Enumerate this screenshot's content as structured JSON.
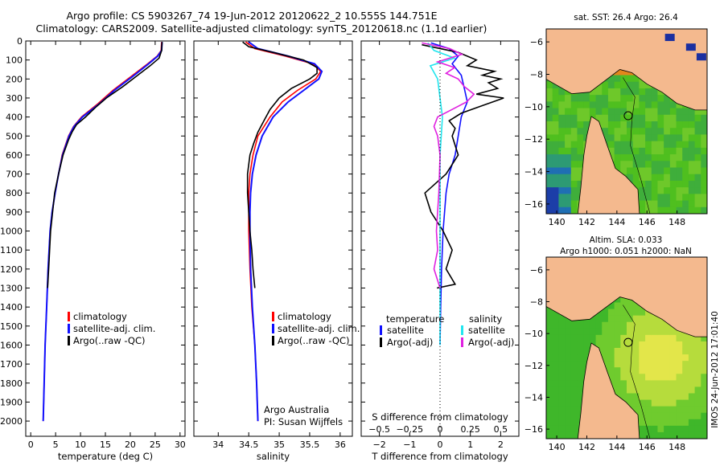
{
  "title": {
    "line1": "Argo profile: CS 5903267_74 19-Jun-2012 20120622_2 10.555S 144.751E",
    "line2": "Climatology: CARS2009. Satellite-adjusted climatology: synTS_20120618.nc (1.1d earlier)"
  },
  "colors": {
    "climatology": "#ff0000",
    "satellite": "#1010ff",
    "argo": "#000000",
    "salinity_sat": "#22e5ee",
    "salinity_argo": "#e020e0",
    "land": "#f4b98e"
  },
  "chart_data": [
    {
      "type": "line",
      "name": "temperature",
      "xlabel": "temperature (deg C)",
      "xlim": [
        -1,
        31
      ],
      "xticks": [
        "0",
        "5",
        "10",
        "15",
        "20",
        "25",
        "30"
      ],
      "ylim": [
        0,
        2080
      ],
      "yticks": [
        "0",
        "100",
        "200",
        "300",
        "400",
        "500",
        "600",
        "700",
        "800",
        "900",
        "1000",
        "1100",
        "1200",
        "1300",
        "1400",
        "1500",
        "1600",
        "1700",
        "1800",
        "1900",
        "2000"
      ],
      "legend": [
        "climatology",
        "satellite-adj. clim.",
        "Argo(..raw -QC)"
      ],
      "series": [
        {
          "name": "climatology",
          "depth": [
            5,
            50,
            80,
            120,
            180,
            260,
            330,
            400,
            450,
            500,
            600,
            700,
            800,
            900,
            1000,
            1200,
            1400,
            1600,
            1800,
            2000
          ],
          "values": [
            26.3,
            26.2,
            25.4,
            23.5,
            20.5,
            16.5,
            13.5,
            10.2,
            8.6,
            7.6,
            6.3,
            5.6,
            4.9,
            4.3,
            3.9,
            3.5,
            3.2,
            2.9,
            2.7,
            2.5
          ]
        },
        {
          "name": "satellite",
          "depth": [
            5,
            50,
            80,
            120,
            180,
            260,
            330,
            400,
            450,
            500,
            600,
            700,
            800,
            900,
            1000,
            1200,
            1400,
            1600,
            1800,
            2000
          ],
          "values": [
            26.4,
            26.3,
            25.5,
            23.7,
            20.8,
            16.8,
            13.8,
            10.4,
            8.7,
            7.7,
            6.4,
            5.6,
            4.9,
            4.3,
            3.9,
            3.5,
            3.2,
            2.9,
            2.7,
            2.5
          ]
        },
        {
          "name": "argo",
          "depth": [
            5,
            50,
            90,
            130,
            180,
            240,
            300,
            350,
            400,
            440,
            480,
            520,
            600,
            700,
            800,
            900,
            1000,
            1100,
            1200,
            1300
          ],
          "values": [
            26.4,
            26.3,
            25.8,
            24.0,
            21.5,
            18.5,
            15.2,
            13.0,
            11.0,
            9.2,
            8.3,
            7.6,
            6.5,
            5.6,
            4.8,
            4.4,
            4.0,
            3.8,
            3.6,
            3.4
          ]
        }
      ]
    },
    {
      "type": "line",
      "name": "salinity",
      "xlabel": "salinity",
      "xlim": [
        33.6,
        36.2
      ],
      "xticks": [
        "34",
        "34.5",
        "35",
        "35.5",
        "36"
      ],
      "ylim": [
        0,
        2080
      ],
      "legend": [
        "climatology",
        "satellite-adj. clim.",
        "Argo(..raw -QC)"
      ],
      "annotation": [
        "Argo Australia",
        "PI: Susan Wijffels"
      ],
      "series": [
        {
          "name": "climatology",
          "depth": [
            5,
            40,
            80,
            120,
            160,
            200,
            260,
            320,
            400,
            500,
            600,
            700,
            800,
            900,
            1000,
            1200,
            1400,
            1600,
            1800,
            2000
          ],
          "values": [
            34.45,
            34.6,
            35.1,
            35.55,
            35.68,
            35.6,
            35.3,
            35.05,
            34.85,
            34.65,
            34.57,
            34.52,
            34.5,
            34.5,
            34.5,
            34.52,
            34.55,
            34.6,
            34.63,
            34.65
          ]
        },
        {
          "name": "satellite",
          "depth": [
            5,
            40,
            80,
            120,
            160,
            200,
            260,
            320,
            400,
            500,
            600,
            700,
            800,
            900,
            1000,
            1200,
            1400,
            1600,
            1800,
            2000
          ],
          "values": [
            34.5,
            34.65,
            35.15,
            35.58,
            35.7,
            35.65,
            35.4,
            35.15,
            34.9,
            34.72,
            34.62,
            34.56,
            34.53,
            34.52,
            34.52,
            34.53,
            34.56,
            34.6,
            34.63,
            34.65
          ]
        },
        {
          "name": "argo",
          "depth": [
            5,
            30,
            60,
            100,
            140,
            170,
            200,
            250,
            300,
            360,
            420,
            480,
            540,
            600,
            700,
            800,
            900,
            1000,
            1100,
            1200,
            1300
          ],
          "values": [
            34.4,
            34.5,
            34.9,
            35.4,
            35.62,
            35.62,
            35.5,
            35.2,
            35.0,
            34.85,
            34.75,
            34.65,
            34.58,
            34.52,
            34.48,
            34.48,
            34.5,
            34.52,
            34.55,
            34.57,
            34.6
          ]
        }
      ]
    },
    {
      "type": "line",
      "name": "difference",
      "xlabel": "T difference from climatology",
      "xlabel_top": "S difference from climatology",
      "xlim": [
        -2.6,
        2.6
      ],
      "xticks": [
        "−2",
        "−1",
        "0",
        "1",
        "2"
      ],
      "xticks_top": [
        "−0.5",
        "−0.25",
        "0",
        "0.25",
        "0.5"
      ],
      "legend": {
        "temperature_header": "temperature",
        "salinity_header": "salinity",
        "t_sat": "satellite",
        "t_argo": "Argo(-adj)",
        "s_sat": "satellite",
        "s_argo": "Argo(-adj)"
      },
      "series": [
        {
          "name": "T satellite",
          "depth": [
            10,
            40,
            80,
            120,
            180,
            250,
            320,
            400,
            500,
            600,
            700,
            800,
            1000,
            1200,
            1400,
            1600
          ],
          "values": [
            -0.3,
            0.3,
            0.6,
            0.4,
            0.7,
            0.8,
            0.9,
            0.7,
            0.6,
            0.5,
            0.3,
            0.2,
            0.1,
            0.05,
            0.02,
            0.0
          ]
        },
        {
          "name": "T argo",
          "depth": [
            20,
            60,
            100,
            130,
            160,
            180,
            200,
            220,
            250,
            280,
            300,
            340,
            380,
            420,
            460,
            500,
            600,
            700,
            800,
            900,
            1000,
            1100,
            1200,
            1280,
            1300
          ],
          "values": [
            -0.6,
            0.6,
            1.2,
            0.9,
            1.8,
            1.4,
            2.0,
            1.6,
            1.9,
            1.2,
            2.1,
            1.4,
            0.7,
            0.3,
            0.5,
            0.4,
            0.6,
            0.2,
            -0.5,
            -0.3,
            0.1,
            0.4,
            0.2,
            0.5,
            -0.1
          ]
        },
        {
          "name": "S satellite",
          "depth": [
            10,
            50,
            90,
            130,
            200,
            300,
            400,
            500,
            600,
            800,
            1000,
            1200,
            1400,
            1600
          ],
          "values": [
            -0.1,
            -0.05,
            0.12,
            -0.08,
            -0.02,
            0.0,
            0.02,
            0.01,
            0.0,
            0.0,
            0.0,
            0.0,
            0.0,
            0.0
          ]
        },
        {
          "name": "S argo",
          "depth": [
            10,
            40,
            70,
            110,
            140,
            170,
            200,
            240,
            280,
            320,
            360,
            400,
            450,
            500,
            600,
            800,
            1000,
            1100,
            1200,
            1260,
            1300
          ],
          "values": [
            -0.15,
            0.08,
            0.18,
            -0.02,
            0.12,
            0.05,
            0.15,
            0.2,
            0.28,
            0.22,
            0.1,
            -0.02,
            -0.05,
            -0.02,
            0.0,
            -0.01,
            -0.03,
            -0.02,
            -0.05,
            -0.02,
            0.0
          ]
        }
      ]
    },
    {
      "type": "heatmap",
      "name": "sst-map",
      "title": "sat. SST: 26.4  Argo: 26.4",
      "xticks": [
        "140",
        "142",
        "144",
        "146",
        "148"
      ],
      "yticks": [
        "-6",
        "-8",
        "-10",
        "-12",
        "-14",
        "-16"
      ],
      "argo_position": {
        "lon": 144.751,
        "lat": -10.555
      }
    },
    {
      "type": "heatmap",
      "name": "sla-map",
      "title": "Altim. SLA: 0.033",
      "subtitle": "Argo h1000: 0.051 h2000: NaN",
      "xticks": [
        "140",
        "142",
        "144",
        "146",
        "148"
      ],
      "yticks": [
        "-6",
        "-8",
        "-10",
        "-12",
        "-14",
        "-16"
      ],
      "argo_position": {
        "lon": 144.751,
        "lat": -10.555
      }
    }
  ],
  "footer": {
    "stamp": "IMOS 24-Jun-2012 17:01:40"
  }
}
